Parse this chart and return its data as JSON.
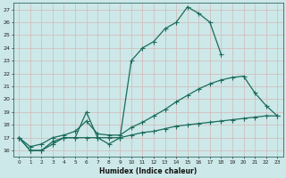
{
  "xlabel": "Humidex (Indice chaleur)",
  "bg_color": "#cce8e8",
  "grid_color": "#d4b8b8",
  "line_color": "#1a6b5a",
  "xlim": [
    -0.5,
    23.5
  ],
  "ylim": [
    15.5,
    27.5
  ],
  "xticks": [
    0,
    1,
    2,
    3,
    4,
    5,
    6,
    7,
    8,
    9,
    10,
    11,
    12,
    13,
    14,
    15,
    16,
    17,
    18,
    19,
    20,
    21,
    22,
    23
  ],
  "yticks": [
    16,
    17,
    18,
    19,
    20,
    21,
    22,
    23,
    24,
    25,
    26,
    27
  ],
  "curve1_x": [
    0,
    1,
    2,
    3,
    4,
    5,
    6,
    7,
    8,
    9,
    10,
    11,
    12,
    13,
    14,
    15,
    16,
    17,
    18
  ],
  "curve1_y": [
    17,
    16,
    16,
    16.5,
    17,
    17,
    19,
    17,
    16.5,
    17,
    23,
    24,
    24.5,
    25.5,
    26,
    27.2,
    26.7,
    26,
    23.5
  ],
  "curve2_x": [
    0,
    1,
    2,
    3,
    4,
    5,
    6,
    7,
    8,
    9,
    10,
    11,
    12,
    13,
    14,
    15,
    16,
    17,
    18,
    19,
    20,
    21,
    22,
    23
  ],
  "curve2_y": [
    17,
    16,
    16,
    16.7,
    17,
    17,
    17,
    17,
    17,
    17,
    17.2,
    17.4,
    17.5,
    17.7,
    17.9,
    18.0,
    18.1,
    18.2,
    18.3,
    18.4,
    18.5,
    18.6,
    18.7,
    18.7
  ],
  "curve3_x": [
    0,
    1,
    2,
    3,
    4,
    5,
    6,
    7,
    8,
    9,
    10,
    11,
    12,
    13,
    14,
    15,
    16,
    17,
    18,
    19,
    20,
    21,
    22,
    23
  ],
  "curve3_y": [
    17,
    16.3,
    16.5,
    17,
    17.2,
    17.5,
    18.3,
    17.3,
    17.2,
    17.2,
    17.8,
    18.2,
    18.7,
    19.2,
    19.8,
    20.3,
    20.8,
    21.2,
    21.5,
    21.7,
    21.8,
    20.5,
    19.5,
    18.7
  ]
}
